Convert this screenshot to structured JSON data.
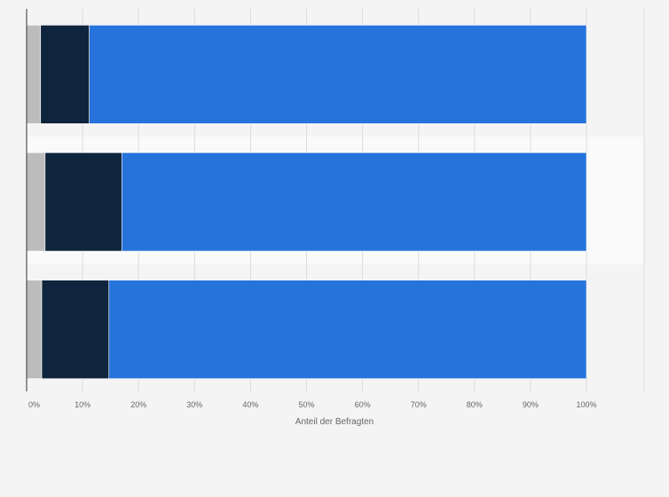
{
  "chart_data": {
    "type": "bar",
    "orientation": "horizontal",
    "stacked": true,
    "categories": [
      "",
      "",
      ""
    ],
    "series": [
      {
        "values": [
          2.5,
          3.3,
          2.7
        ],
        "color": "#bcbcbc"
      },
      {
        "values": [
          8.7,
          13.7,
          12.0
        ],
        "color": "#0f253d"
      },
      {
        "values": [
          88.8,
          83.0,
          85.3
        ],
        "color": "#2673dc"
      }
    ],
    "xlabel": "Anteil der Befragten",
    "xlim": [
      0,
      100
    ],
    "xticks": [
      "0%",
      "10%",
      "20%",
      "30%",
      "40%",
      "50%",
      "60%",
      "70%",
      "80%",
      "90%",
      "100%"
    ],
    "xtick_values": [
      0,
      10,
      20,
      30,
      40,
      50,
      60,
      70,
      80,
      90,
      100
    ],
    "grid": true,
    "legend": "none",
    "colors": {
      "background": "#f4f4f4",
      "row_band_alt": "#fafafa",
      "grid": "#dcdcdc",
      "axis": "#333333"
    }
  }
}
